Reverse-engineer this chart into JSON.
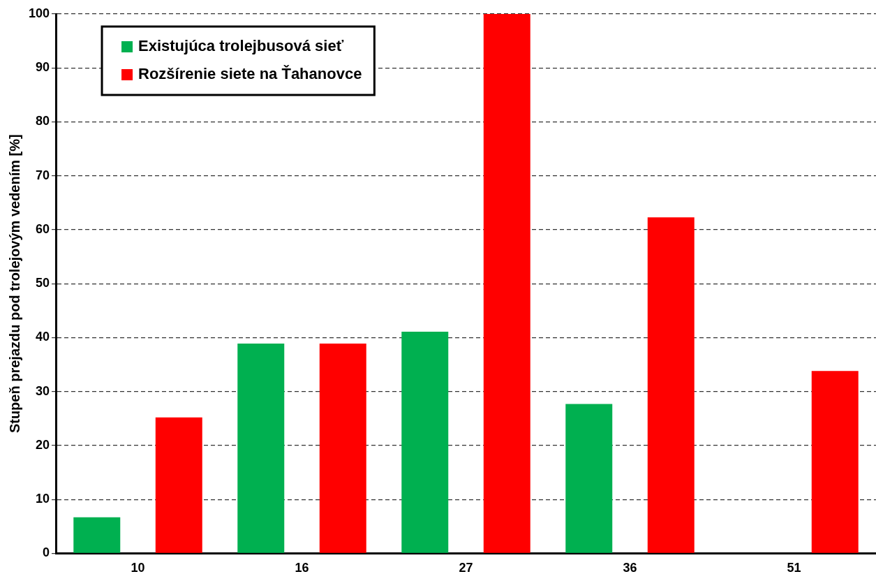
{
  "chart_data": {
    "type": "bar",
    "ylabel": "Stupeň prejazdu pod trolejovým vedením [%]",
    "categories": [
      "10",
      "16",
      "27",
      "36",
      "51"
    ],
    "series": [
      {
        "name": "Existujúca trolejbusová sieť",
        "color": "#00b050",
        "values": [
          6.7,
          38.9,
          41.1,
          27.7,
          null
        ]
      },
      {
        "name": "Rozšírenie siete na Ťahanovce",
        "color": "#ff0000",
        "values": [
          25.2,
          38.9,
          100,
          62.3,
          33.8
        ]
      }
    ],
    "ylim": [
      0,
      100
    ],
    "yticks": [
      0,
      10,
      20,
      30,
      40,
      50,
      60,
      70,
      80,
      90,
      100
    ],
    "grid": "y",
    "legend": "top left"
  }
}
